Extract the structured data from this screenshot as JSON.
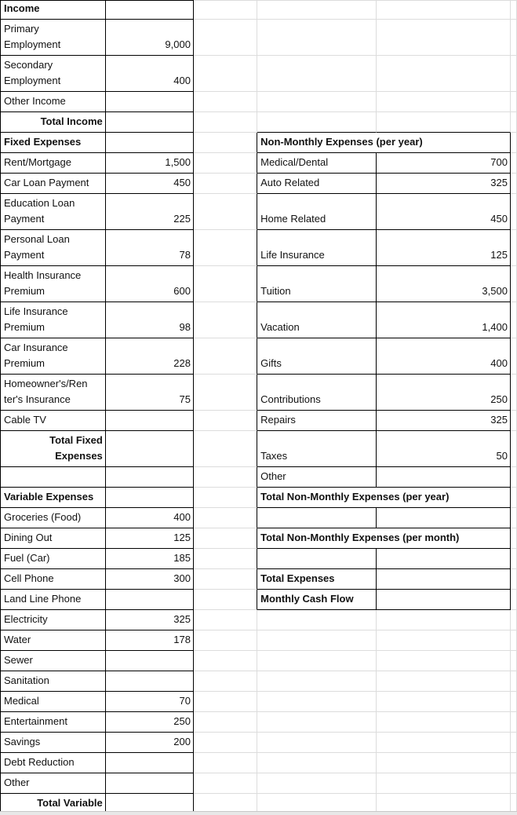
{
  "sheet": {
    "rows": [
      {
        "a": "Income",
        "a_kind": "header"
      },
      {
        "a": "Primary\nEmployment",
        "b": "9,000"
      },
      {
        "a": "Secondary\nEmployment",
        "b": "400"
      },
      {
        "a": "Other Income"
      },
      {
        "a": "Total Income",
        "a_kind": "total"
      },
      {
        "a": "Fixed Expenses",
        "a_kind": "header",
        "d": "Non-Monthly Expenses (per year)",
        "d_kind": "header",
        "merge_de": true
      },
      {
        "a": "Rent/Mortgage",
        "b": "1,500",
        "d": "Medical/Dental",
        "e": "700"
      },
      {
        "a": "Car Loan Payment",
        "b": "450",
        "d": "Auto Related",
        "e": "325"
      },
      {
        "a": "Education Loan\nPayment",
        "b": "225",
        "d": "Home Related",
        "e": "450"
      },
      {
        "a": "Personal Loan\nPayment",
        "b": "78",
        "d": "Life Insurance",
        "e": "125"
      },
      {
        "a": "Health Insurance\nPremium",
        "b": "600",
        "d": "Tuition",
        "e": "3,500"
      },
      {
        "a": "Life Insurance\nPremium",
        "b": "98",
        "d": "Vacation",
        "e": "1,400"
      },
      {
        "a": "Car Insurance\nPremium",
        "b": "228",
        "d": "Gifts",
        "e": "400"
      },
      {
        "a": "Homeowner's/Ren\nter's Insurance",
        "b": "75",
        "d": "Contributions",
        "e": "250"
      },
      {
        "a": "Cable TV",
        "d": "Repairs",
        "e": "325"
      },
      {
        "a": "Total Fixed\nExpenses",
        "a_kind": "total",
        "d": "Taxes",
        "e": "50"
      },
      {
        "a": "",
        "d": "Other"
      },
      {
        "a": "Variable Expenses",
        "a_kind": "header",
        "d": "Total Non-Monthly Expenses (per year)",
        "d_kind": "header",
        "merge_de": true
      },
      {
        "a": "Groceries (Food)",
        "b": "400",
        "d": ""
      },
      {
        "a": "Dining Out",
        "b": "125",
        "d": "Total Non-Monthly Expenses (per month)",
        "d_kind": "header",
        "merge_de": true
      },
      {
        "a": "Fuel (Car)",
        "b": "185",
        "d": ""
      },
      {
        "a": "Cell Phone",
        "b": "300",
        "d": "Total Expenses",
        "d_kind": "header"
      },
      {
        "a": "Land Line Phone",
        "d": "Monthly Cash Flow",
        "d_kind": "header"
      },
      {
        "a": "Electricity",
        "b": "325"
      },
      {
        "a": "Water",
        "b": "178"
      },
      {
        "a": "Sewer"
      },
      {
        "a": "Sanitation"
      },
      {
        "a": "Medical",
        "b": "70"
      },
      {
        "a": "Entertainment",
        "b": "250"
      },
      {
        "a": "Savings",
        "b": "200"
      },
      {
        "a": "Debt Reduction"
      },
      {
        "a": "Other"
      },
      {
        "a": "Total Variable",
        "a_kind": "total"
      }
    ]
  }
}
